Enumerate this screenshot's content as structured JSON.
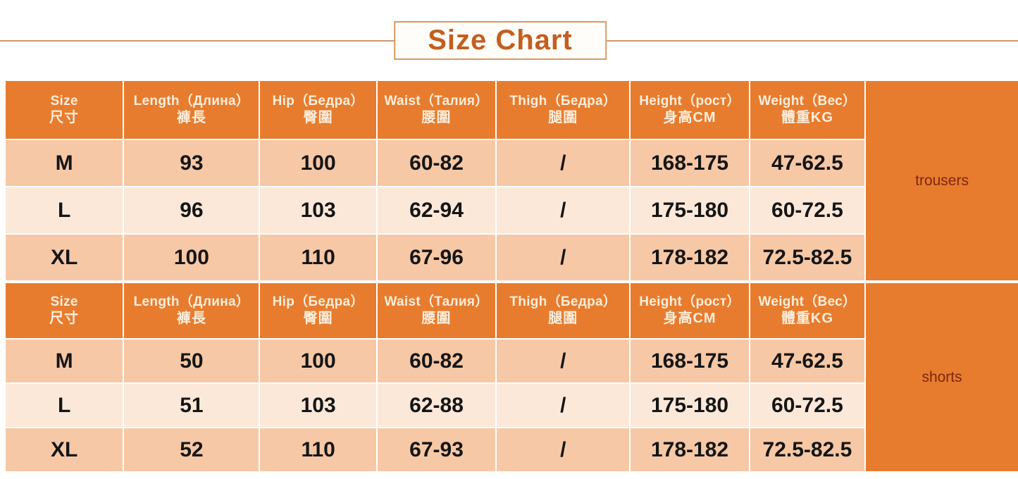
{
  "title": "Size Chart",
  "colors": {
    "header_orange": "#e87c2e",
    "row_peach_dark": "#f6c8a6",
    "row_peach_light": "#fbe8d8",
    "header_text": "#f9eedc",
    "title_text": "#c45e1f",
    "side_label_text": "#7c2714",
    "divider_line": "#cf9771"
  },
  "tables": [
    {
      "side_label": "trousers",
      "columns": [
        {
          "en": "Size",
          "zh": "尺寸"
        },
        {
          "en": "Length（Длина）",
          "zh": "褲長"
        },
        {
          "en": "Hip（Бедра）",
          "zh": "臀圍"
        },
        {
          "en": "Waist（Талия）",
          "zh": "腰圍"
        },
        {
          "en": "Thigh（Бедра）",
          "zh": "腿圍"
        },
        {
          "en": "Height（рост）",
          "zh": "身高CM"
        },
        {
          "en": "Weight（Вес）",
          "zh": "體重KG"
        }
      ],
      "rows": [
        {
          "size": "M",
          "length": "93",
          "hip": "100",
          "waist": "60-82",
          "thigh": "/",
          "height": "168-175",
          "weight": "47-62.5"
        },
        {
          "size": "L",
          "length": "96",
          "hip": "103",
          "waist": "62-94",
          "thigh": "/",
          "height": "175-180",
          "weight": "60-72.5"
        },
        {
          "size": "XL",
          "length": "100",
          "hip": "110",
          "waist": "67-96",
          "thigh": "/",
          "height": "178-182",
          "weight": "72.5-82.5"
        }
      ]
    },
    {
      "side_label": "shorts",
      "columns": [
        {
          "en": "Size",
          "zh": "尺寸"
        },
        {
          "en": "Length（Длина）",
          "zh": "褲長"
        },
        {
          "en": "Hip（Бедра）",
          "zh": "臀圍"
        },
        {
          "en": "Waist（Талия）",
          "zh": "腰圍"
        },
        {
          "en": "Thigh（Бедра）",
          "zh": "腿圍"
        },
        {
          "en": "Height（рост）",
          "zh": "身高CM"
        },
        {
          "en": "Weight（Вес）",
          "zh": "體重KG"
        }
      ],
      "rows": [
        {
          "size": "M",
          "length": "50",
          "hip": "100",
          "waist": "60-82",
          "thigh": "/",
          "height": "168-175",
          "weight": "47-62.5"
        },
        {
          "size": "L",
          "length": "51",
          "hip": "103",
          "waist": "62-88",
          "thigh": "/",
          "height": "175-180",
          "weight": "60-72.5"
        },
        {
          "size": "XL",
          "length": "52",
          "hip": "110",
          "waist": "67-93",
          "thigh": "/",
          "height": "178-182",
          "weight": "72.5-82.5"
        }
      ]
    }
  ]
}
